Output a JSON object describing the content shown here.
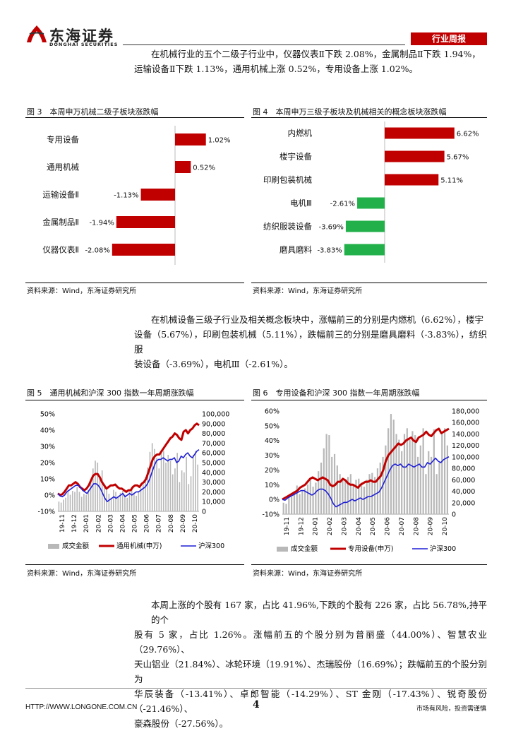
{
  "header": {
    "logo_cn": "东海证券",
    "logo_en": "DONGHAI SECURITIES",
    "tag": "行业周报"
  },
  "intro": {
    "line1": "在机械行业的五个二级子行业中，仪器仪表Ⅱ下跌 2.08%，金属制品Ⅱ下跌 1.94%，",
    "line2": "运输设备Ⅱ下跌 1.13%，通用机械上涨 0.52%，专用设备上涨 1.02%。"
  },
  "fig3": {
    "title": "图 3　本周申万机械二级子板块涨跌幅",
    "source": "资料来源：Wind，东海证券研究所"
  },
  "fig4": {
    "title": "图 4　本周申万三级子板块及机械相关的概念板块涨跌幅",
    "source": "资料来源：Wind，东海证券研究所"
  },
  "mid_para": {
    "line1": "在机械设备三级子行业及相关概念板块中，涨幅前三的分别是内燃机（6.62%），楼宇",
    "line2": "设备（5.67%），印刷包装机械（5.11%），跌幅前三的分别是磨具磨料（-3.83%），纺织服",
    "line3": "装设备（-3.69%），电机Ⅲ（-2.61%）。"
  },
  "fig5": {
    "title": "图 5　通用机械和沪深 300 指数一年周期涨跌幅",
    "source": "资料来源：Wind，东海证券研究所"
  },
  "fig6": {
    "title": "图 6　专用设备和沪深 300 指数一年周期涨跌幅",
    "source": "资料来源：Wind，东海证券研究所"
  },
  "bottom_para": {
    "line1": "本周上涨的个股有 167 家，占比 41.96%,下跌的个股有 226 家，占比 56.78%,持平的个",
    "line2": "股有 5 家，占比 1.26%。涨幅前五的个股分别为普丽盛（44.00%）、智慧农业（29.76%）、",
    "line3": "天山铝业（21.84%）、冰轮环境（19.91%）、杰瑞股份（16.69%）；跌幅前五的个股分别为",
    "line4": "华辰装备（-13.41%）、卓郎智能（-14.29%）、ST 金刚（-17.43%）、锐奇股份（-21.46%）、",
    "line5": "豪森股份（-27.56%）。"
  },
  "footer": {
    "url": "HTTP://WWW.LONGONE.COM.CN",
    "page": "4",
    "disclaimer": "市场有风险，投资需谨慎"
  },
  "colors": {
    "red": "#c00000",
    "green": "#22b04a",
    "blue": "#1f1fd6",
    "gray": "#b8b8b8",
    "accent": "#c00000"
  },
  "chart_data": [
    {
      "type": "bar",
      "orientation": "horizontal",
      "categories": [
        "专用设备",
        "通用机械",
        "运输设备Ⅱ",
        "金属制品Ⅱ",
        "仪器仪表Ⅱ"
      ],
      "values": [
        1.02,
        0.52,
        -1.13,
        -1.94,
        -2.08
      ],
      "labels": [
        "1.02%",
        "0.52%",
        "-1.13%",
        "-1.94%",
        "-2.08%"
      ]
    },
    {
      "type": "bar",
      "orientation": "horizontal",
      "categories": [
        "内燃机",
        "楼宇设备",
        "印刷包装机械",
        "电机Ⅲ",
        "纺织服装设备",
        "磨具磨料"
      ],
      "values": [
        6.62,
        5.67,
        5.11,
        -2.61,
        -3.69,
        -3.83
      ],
      "labels": [
        "6.62%",
        "5.67%",
        "5.11%",
        "-2.61%",
        "-3.69%",
        "-3.83%"
      ]
    },
    {
      "type": "line",
      "x_ticks": [
        "19-11",
        "19-12",
        "20-01",
        "20-02",
        "20-03",
        "20-04",
        "20-05",
        "20-06",
        "20-07",
        "20-08",
        "20-09",
        "20-10"
      ],
      "left_ticks": [
        "50%",
        "40%",
        "30%",
        "20%",
        "10%",
        "0%",
        "-10%"
      ],
      "right_ticks": [
        "100,000",
        "90,000",
        "80,000",
        "70,000",
        "60,000",
        "50,000",
        "40,000",
        "30,000",
        "20,000",
        "10,000",
        "0"
      ],
      "ylim_left": [
        -10,
        50
      ],
      "ylim_right": [
        0,
        100000
      ],
      "series": [
        {
          "name": "成交金额",
          "kind": "bar",
          "axis": "right",
          "values": [
            10000,
            9000,
            12000,
            14000,
            22000,
            17000,
            21000,
            20000,
            25000,
            20000,
            15000,
            18000,
            17000,
            22000,
            32000,
            44000,
            52000,
            50000,
            35000,
            42000,
            28000,
            25000,
            18000,
            14000,
            22000,
            20000,
            15000,
            19000,
            21000,
            17000,
            14000,
            20000,
            25000,
            18000,
            16000,
            20000,
            24000,
            28000,
            35000,
            45000,
            61000,
            70000,
            64000,
            55000,
            44000,
            60000,
            62000,
            50000,
            58000,
            52000,
            38000,
            44000,
            60000,
            30000,
            42000,
            40000,
            56000,
            28000,
            36000,
            58000,
            62000,
            48000
          ]
        },
        {
          "name": "通用机械(申万)",
          "kind": "line",
          "axis": "left",
          "values": [
            1,
            0,
            0.5,
            2,
            4,
            6,
            6,
            7,
            8,
            7,
            5,
            4,
            3,
            4,
            6,
            9,
            12,
            13,
            13,
            11,
            8,
            6,
            4,
            5,
            6,
            6,
            6.5,
            5,
            4,
            4,
            3,
            2,
            3,
            3,
            5,
            6,
            6,
            5,
            7,
            8,
            10,
            14,
            18,
            22,
            24,
            25,
            25,
            27,
            29,
            31,
            33,
            35,
            36,
            38,
            37,
            35,
            34,
            39,
            40,
            38,
            40,
            41,
            43,
            44,
            43
          ]
        },
        {
          "name": "沪深300",
          "kind": "line",
          "axis": "left",
          "values": [
            1,
            -0.5,
            -1,
            0,
            2,
            3,
            4,
            5,
            6,
            6,
            5,
            3,
            2,
            1,
            3,
            5,
            7,
            7,
            6,
            4,
            1,
            -2,
            -4,
            -3,
            -2,
            -1,
            -2,
            -1,
            0,
            1,
            -1,
            0,
            1,
            0,
            1,
            2,
            2,
            3,
            4,
            5,
            7,
            10,
            14,
            18,
            21,
            22,
            22,
            23,
            22,
            21,
            22,
            22,
            23,
            20,
            21,
            24,
            23,
            25,
            26,
            24,
            23,
            25,
            27,
            28
          ]
        }
      ]
    },
    {
      "type": "line",
      "x_ticks": [
        "19-11",
        "19-12",
        "20-01",
        "20-02",
        "20-03",
        "20-04",
        "20-05",
        "20-06",
        "20-07",
        "20-08",
        "20-09",
        "20-10"
      ],
      "left_ticks": [
        "60%",
        "50%",
        "40%",
        "30%",
        "20%",
        "10%",
        "0%",
        "-10%"
      ],
      "right_ticks": [
        "180,000",
        "160,000",
        "140,000",
        "120,000",
        "100,000",
        "80,000",
        "60,000",
        "40,000",
        "20,000",
        "0"
      ],
      "ylim_left": [
        -10,
        60
      ],
      "ylim_right": [
        0,
        180000
      ],
      "series": [
        {
          "name": "成交金额",
          "kind": "bar",
          "axis": "right",
          "values": [
            20000,
            18000,
            28000,
            30000,
            40000,
            50000,
            35000,
            40000,
            45000,
            52000,
            60000,
            48000,
            55000,
            75000,
            90000,
            115000,
            140000,
            138000,
            100000,
            105000,
            85000,
            70000,
            60000,
            58000,
            65000,
            70000,
            50000,
            60000,
            62000,
            55000,
            48000,
            60000,
            70000,
            72000,
            65000,
            80000,
            90000,
            100000,
            120000,
            150000,
            175000,
            165000,
            140000,
            130000,
            110000,
            140000,
            150000,
            130000,
            145000,
            138000,
            100000,
            120000,
            150000,
            70000,
            110000,
            100000,
            148000,
            70000,
            90000,
            140000,
            150000,
            120000
          ]
        },
        {
          "name": "专用设备(申万)",
          "kind": "line",
          "axis": "left",
          "values": [
            0,
            1,
            2,
            3,
            4,
            5,
            6,
            8,
            9,
            10,
            12,
            14,
            15,
            14,
            13,
            14,
            15,
            14,
            13,
            10,
            9,
            10,
            12,
            12,
            14,
            13,
            11,
            10,
            10,
            9,
            8,
            10,
            11,
            12,
            12,
            13,
            12,
            12,
            14,
            16,
            20,
            26,
            30,
            32,
            34,
            36,
            38,
            37,
            38,
            40,
            41,
            42,
            40,
            39,
            42,
            43,
            44,
            46,
            44,
            43,
            45,
            47,
            48,
            45,
            46,
            47,
            48
          ]
        },
        {
          "name": "沪深300",
          "kind": "line",
          "axis": "left",
          "values": [
            0,
            -0.5,
            1,
            2,
            3,
            4,
            5,
            6,
            6,
            5,
            4,
            3,
            4,
            6,
            7,
            7,
            6,
            4,
            1,
            -3,
            -5,
            -4,
            -3,
            -2,
            -2,
            -1,
            0,
            -1,
            0,
            1,
            0,
            1,
            2,
            2,
            3,
            4,
            5,
            8,
            12,
            16,
            20,
            23,
            24,
            23,
            24,
            22,
            22,
            24,
            23,
            22,
            23,
            24,
            22,
            22,
            25,
            24,
            26,
            28,
            26,
            25,
            27,
            28,
            29
          ]
        }
      ]
    }
  ]
}
